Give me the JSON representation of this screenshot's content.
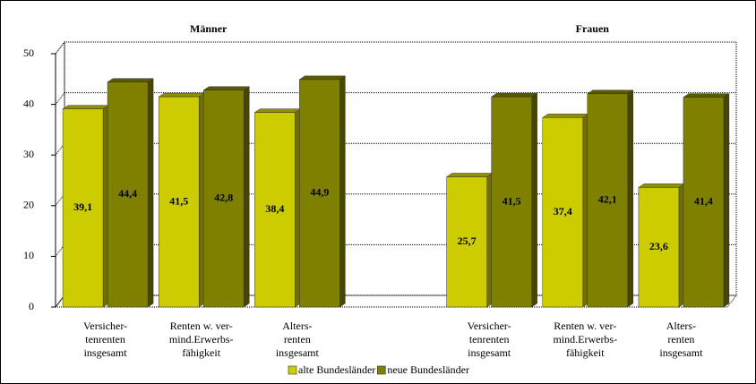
{
  "chart_data": {
    "type": "bar",
    "annotations": [
      "Männer",
      "Frauen"
    ],
    "categories": [
      [
        "Versicher-",
        "tenrenten",
        "insgesamt"
      ],
      [
        "Renten w. ver-",
        "mind.Erwerbs-",
        "fähigkeit"
      ],
      [
        "Alters-",
        "renten",
        "insgesamt"
      ],
      null,
      [
        "Versicher-",
        "tenrenten",
        "insgesamt"
      ],
      [
        "Renten w. ver-",
        "mind.Erwerbs-",
        "fähigkeit"
      ],
      [
        "Alters-",
        "renten",
        "insgesamt"
      ]
    ],
    "series": [
      {
        "name": "alte Bundesländer",
        "color": "#cccc00",
        "values": [
          39.1,
          41.5,
          38.4,
          null,
          25.7,
          37.4,
          23.6
        ],
        "value_labels": [
          "39,1",
          "41,5",
          "38,4",
          null,
          "25,7",
          "37,4",
          "23,6"
        ]
      },
      {
        "name": "neue Bundesländer",
        "color": "#808000",
        "values": [
          44.4,
          42.8,
          44.9,
          null,
          41.5,
          42.1,
          41.4
        ],
        "value_labels": [
          "44,4",
          "42,8",
          "44,9",
          null,
          "41,5",
          "42,1",
          "41,4"
        ]
      }
    ],
    "ylim": [
      0,
      50
    ],
    "yticks": [
      0,
      10,
      20,
      30,
      40,
      50
    ],
    "grid": true,
    "legend": "bottom"
  }
}
